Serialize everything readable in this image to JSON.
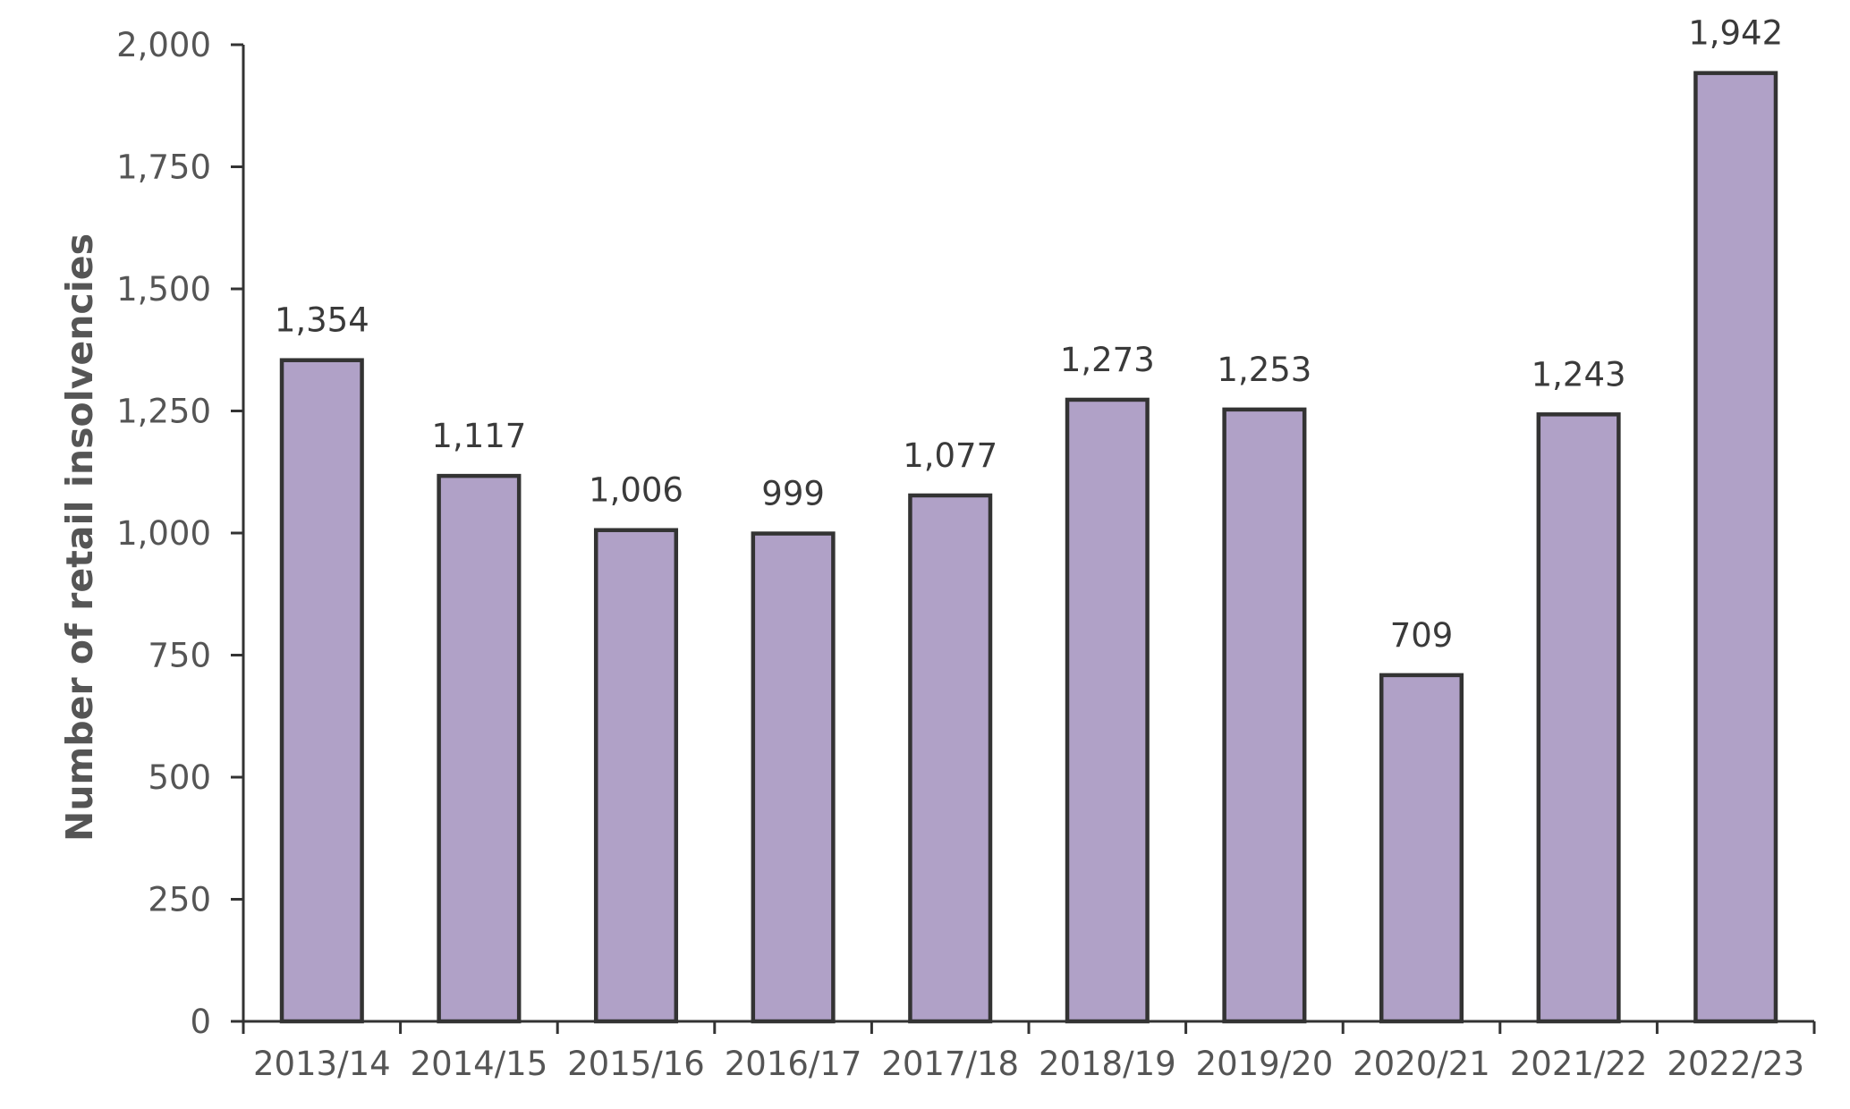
{
  "chart_data": {
    "type": "bar",
    "title": "",
    "xlabel": "",
    "ylabel": "Number of retail insolvencies",
    "categories": [
      "2013/14",
      "2014/15",
      "2015/16",
      "2016/17",
      "2017/18",
      "2018/19",
      "2019/20",
      "2020/21",
      "2021/22",
      "2022/23"
    ],
    "values": [
      1354,
      1117,
      1006,
      999,
      1077,
      1273,
      1253,
      709,
      1243,
      1942
    ],
    "value_labels": [
      "1,354",
      "1,117",
      "1,006",
      "999",
      "1,077",
      "1,273",
      "1,253",
      "709",
      "1,243",
      "1,942"
    ],
    "yticks": [
      0,
      250,
      500,
      750,
      1000,
      1250,
      1500,
      1750,
      2000
    ],
    "ytick_labels": [
      "0",
      "250",
      "500",
      "750",
      "1,000",
      "1,250",
      "1,500",
      "1,750",
      "2,000"
    ],
    "ylim": [
      0,
      2000
    ],
    "grid": false,
    "legend": "none",
    "bar_color": "#b0a1c7",
    "bar_edge_color": "#333333"
  }
}
